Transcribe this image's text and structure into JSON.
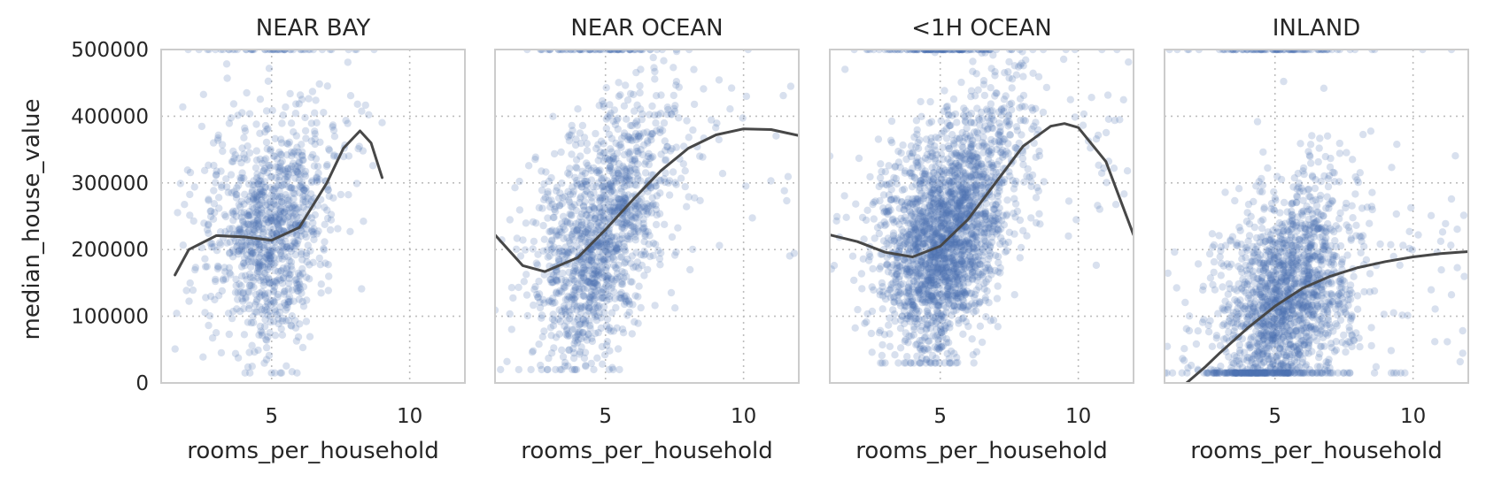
{
  "chart_data": [
    {
      "type": "scatter",
      "title": "NEAR BAY",
      "xlabel": "rooms_per_household",
      "ylabel": "median_house_value",
      "xlim": [
        1,
        12
      ],
      "ylim": [
        0,
        500000
      ],
      "xticks": [
        5,
        10
      ],
      "yticks": [
        0,
        100000,
        200000,
        300000,
        400000,
        500000
      ],
      "grid": true,
      "points": {
        "count": 1100,
        "x_center": 5.0,
        "x_spread": 1.1,
        "x_range": [
          1.5,
          9.0
        ],
        "y_min": 15000,
        "y_max": 500000
      },
      "trend_line": {
        "x": [
          1.5,
          2.0,
          3.0,
          4.0,
          5.0,
          6.0,
          7.0,
          7.6,
          8.2,
          8.6,
          9.0
        ],
        "y": [
          162000,
          200000,
          221000,
          219000,
          214000,
          233000,
          300000,
          352000,
          378000,
          360000,
          308000
        ]
      }
    },
    {
      "type": "scatter",
      "title": "NEAR OCEAN",
      "xlabel": "rooms_per_household",
      "ylabel": "",
      "xlim": [
        1,
        12
      ],
      "ylim": [
        0,
        500000
      ],
      "xticks": [
        5,
        10
      ],
      "yticks": [],
      "grid": true,
      "points": {
        "count": 1400,
        "x_center": 4.9,
        "x_spread": 1.2,
        "x_range": [
          1.0,
          12.0
        ],
        "y_min": 20000,
        "y_max": 500000
      },
      "trend_line": {
        "x": [
          1.0,
          2.0,
          2.8,
          4.0,
          5.0,
          6.0,
          7.0,
          8.0,
          9.0,
          10.0,
          11.0,
          12.0
        ],
        "y": [
          222000,
          176000,
          167000,
          188000,
          230000,
          275000,
          318000,
          352000,
          372000,
          381000,
          380000,
          371000
        ]
      }
    },
    {
      "type": "scatter",
      "title": "<1H OCEAN",
      "xlabel": "rooms_per_household",
      "ylabel": "",
      "xlim": [
        1,
        12
      ],
      "ylim": [
        0,
        500000
      ],
      "xticks": [
        5,
        10
      ],
      "yticks": [],
      "grid": true,
      "points": {
        "count": 2400,
        "x_center": 5.2,
        "x_spread": 1.2,
        "x_range": [
          1.0,
          12.0
        ],
        "y_min": 30000,
        "y_max": 500000
      },
      "trend_line": {
        "x": [
          1.0,
          2.0,
          3.0,
          4.0,
          5.0,
          6.0,
          7.0,
          8.0,
          9.0,
          9.5,
          10.0,
          11.0,
          12.0
        ],
        "y": [
          222000,
          212000,
          196000,
          189000,
          205000,
          245000,
          300000,
          355000,
          385000,
          389000,
          383000,
          332000,
          222000
        ]
      }
    },
    {
      "type": "scatter",
      "title": "INLAND",
      "xlabel": "rooms_per_household",
      "ylabel": "",
      "xlim": [
        1,
        12
      ],
      "ylim": [
        0,
        500000
      ],
      "xticks": [
        5,
        10
      ],
      "yticks": [],
      "grid": true,
      "points": {
        "count": 1900,
        "x_center": 5.4,
        "x_spread": 1.2,
        "x_range": [
          1.0,
          12.0
        ],
        "y_min": 15000,
        "y_max": 500000
      },
      "trend_line": {
        "x": [
          1.8,
          2.5,
          3.0,
          4.0,
          5.0,
          6.0,
          7.0,
          8.0,
          9.0,
          10.0,
          11.0,
          12.0
        ],
        "y": [
          0,
          25000,
          45000,
          82000,
          115000,
          142000,
          160000,
          173000,
          182000,
          189000,
          194000,
          197000
        ]
      }
    }
  ],
  "colors": {
    "points": "#4c72b0",
    "trend_line": "#474747",
    "frame": "#cccccc",
    "grid": "#bdbdbd"
  }
}
